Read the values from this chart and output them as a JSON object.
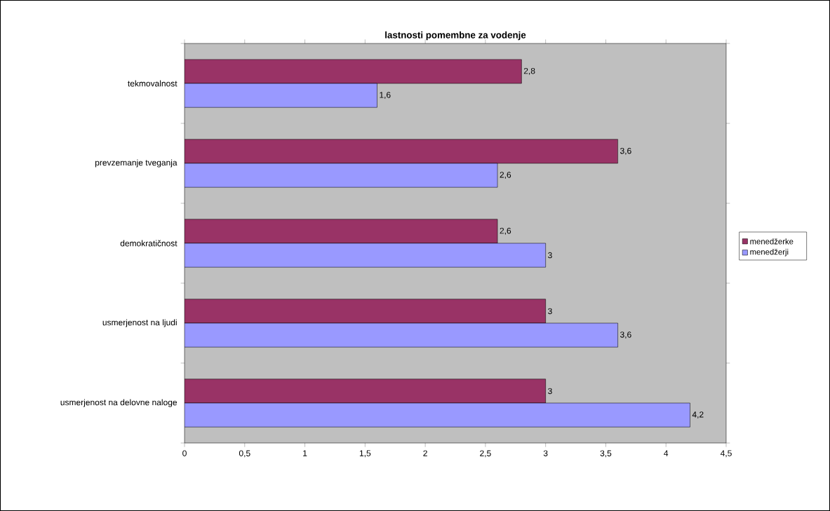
{
  "chart_data": {
    "type": "bar",
    "orientation": "horizontal",
    "title": "lastnosti pomembne za vodenje",
    "categories": [
      "tekmovalnost",
      "prevzemanje tveganja",
      "demokratičnost",
      "usmerjenost na ljudi",
      "usmerjenost na delovne naloge"
    ],
    "series": [
      {
        "name": "menedžerke",
        "color": "#993366",
        "values": [
          2.8,
          3.6,
          2.6,
          3,
          3
        ],
        "value_labels": [
          "2,8",
          "3,6",
          "2,6",
          "3",
          "3"
        ]
      },
      {
        "name": "menedžerji",
        "color": "#9999ff",
        "values": [
          1.6,
          2.6,
          3,
          3.6,
          4.2
        ],
        "value_labels": [
          "1,6",
          "2,6",
          "3",
          "3,6",
          "4,2"
        ]
      }
    ],
    "xlim": [
      0,
      4.5
    ],
    "xticks": [
      0,
      {
        "value": 0.5,
        "label": "0,5"
      },
      1,
      {
        "value": 1.5,
        "label": "1,5"
      },
      2,
      {
        "value": 2.5,
        "label": "2,5"
      },
      3,
      {
        "value": 3.5,
        "label": "3,5"
      },
      4,
      {
        "value": 4.5,
        "label": "4,5"
      }
    ],
    "grid": false,
    "legend": "right"
  }
}
